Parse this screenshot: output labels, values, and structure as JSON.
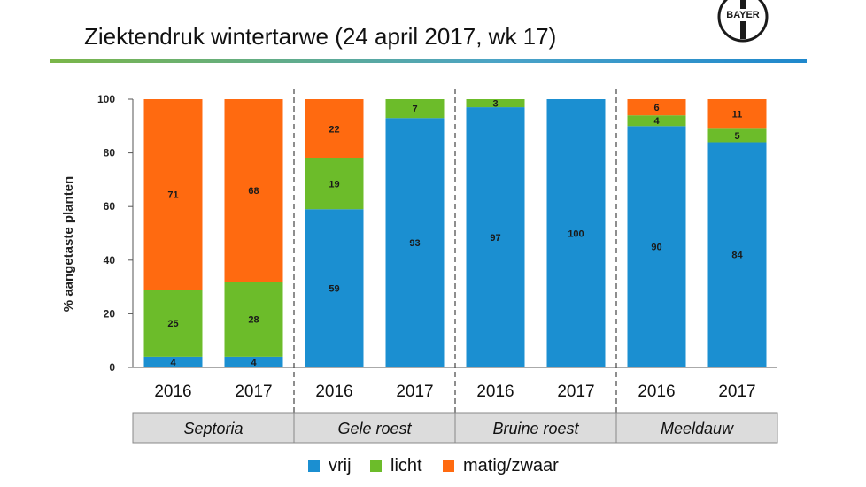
{
  "title": "Ziektendruk wintertarwe  (24 april 2017, wk 17)",
  "logo_text": "BAYER",
  "colors": {
    "vrij": "#1b8fd1",
    "licht": "#6cbc2a",
    "matig_zwaar": "#ff6a10",
    "group_box": "#dcdcdc"
  },
  "chart_data": {
    "type": "bar",
    "stacked": true,
    "ylabel": "% aangetaste planten",
    "ylim": [
      0,
      100
    ],
    "yticks": [
      0,
      20,
      40,
      60,
      80,
      100
    ],
    "categories": [
      "2016",
      "2017",
      "2016",
      "2017",
      "2016",
      "2017",
      "2016",
      "2017"
    ],
    "groups": [
      {
        "label": "Septoria",
        "bars": [
          0,
          1
        ]
      },
      {
        "label": "Gele roest",
        "bars": [
          2,
          3
        ]
      },
      {
        "label": "Bruine roest",
        "bars": [
          4,
          5
        ]
      },
      {
        "label": "Meeldauw",
        "bars": [
          6,
          7
        ]
      }
    ],
    "series": [
      {
        "name": "vrij",
        "key": "vrij",
        "values": [
          4,
          4,
          59,
          93,
          97,
          100,
          90,
          84
        ],
        "labels": [
          "4",
          "4",
          "59",
          "93",
          "97",
          "100",
          "90",
          "84"
        ]
      },
      {
        "name": "licht",
        "key": "licht",
        "values": [
          25,
          28,
          19,
          7,
          3,
          0,
          4,
          5
        ],
        "labels": [
          "25",
          "28",
          "19",
          "7",
          "3",
          "",
          "4",
          "5"
        ]
      },
      {
        "name": "matig/zwaar",
        "key": "matig_zwaar",
        "values": [
          71,
          68,
          22,
          0,
          0,
          0,
          6,
          11
        ],
        "labels": [
          "71",
          "68",
          "22",
          "",
          "",
          "",
          "6",
          "11"
        ]
      }
    ],
    "legend": [
      "vrij",
      "licht",
      "matig/zwaar"
    ],
    "legend_position": "bottom"
  }
}
